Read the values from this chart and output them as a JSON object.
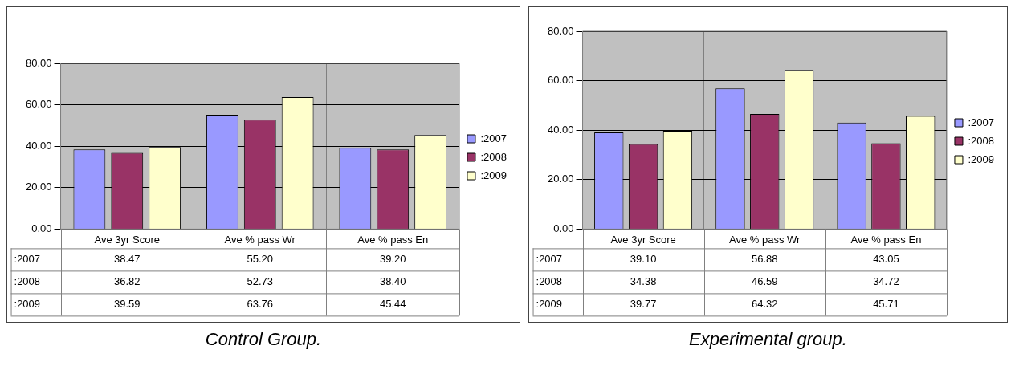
{
  "chart_data": [
    {
      "type": "bar",
      "categories": [
        "Ave 3yr Score",
        "Ave % pass Wr",
        "Ave % pass En"
      ],
      "ylim": [
        0,
        80
      ],
      "yticks": [
        {
          "value": 0,
          "label": "0.00"
        },
        {
          "value": 20,
          "label": "20.00"
        },
        {
          "value": 40,
          "label": "40.00"
        },
        {
          "value": 60,
          "label": "60.00"
        },
        {
          "value": 80,
          "label": "80.00"
        }
      ],
      "grid": true,
      "legend": "right",
      "annotations": [
        "Control Group."
      ],
      "series": [
        {
          "name": ":2007",
          "color": "#9999ff",
          "values": [
            38.47,
            55.2,
            39.2
          ],
          "value_labels": [
            "38.47",
            "55.20",
            "39.20"
          ]
        },
        {
          "name": ":2008",
          "color": "#993366",
          "values": [
            36.82,
            52.73,
            38.4
          ],
          "value_labels": [
            "36.82",
            "52.73",
            "38.40"
          ]
        },
        {
          "name": ":2009",
          "color": "#ffffcc",
          "values": [
            39.59,
            63.76,
            45.44
          ],
          "value_labels": [
            "39.59",
            "63.76",
            "45.44"
          ]
        }
      ]
    },
    {
      "type": "bar",
      "categories": [
        "Ave 3yr Score",
        "Ave % pass Wr",
        "Ave % pass En"
      ],
      "ylim": [
        0,
        80
      ],
      "yticks": [
        {
          "value": 0,
          "label": "0.00"
        },
        {
          "value": 20,
          "label": "20.00"
        },
        {
          "value": 40,
          "label": "40.00"
        },
        {
          "value": 60,
          "label": "60.00"
        },
        {
          "value": 80,
          "label": "80.00"
        }
      ],
      "grid": true,
      "legend": "right",
      "annotations": [
        "Experimental group."
      ],
      "series": [
        {
          "name": ":2007",
          "color": "#9999ff",
          "values": [
            39.1,
            56.88,
            43.05
          ],
          "value_labels": [
            "39.10",
            "56.88",
            "43.05"
          ]
        },
        {
          "name": ":2008",
          "color": "#993366",
          "values": [
            34.38,
            46.59,
            34.72
          ],
          "value_labels": [
            "34.38",
            "46.59",
            "34.72"
          ]
        },
        {
          "name": ":2009",
          "color": "#ffffcc",
          "values": [
            39.77,
            64.32,
            45.71
          ],
          "value_labels": [
            "39.77",
            "64.32",
            "45.71"
          ]
        }
      ]
    }
  ]
}
